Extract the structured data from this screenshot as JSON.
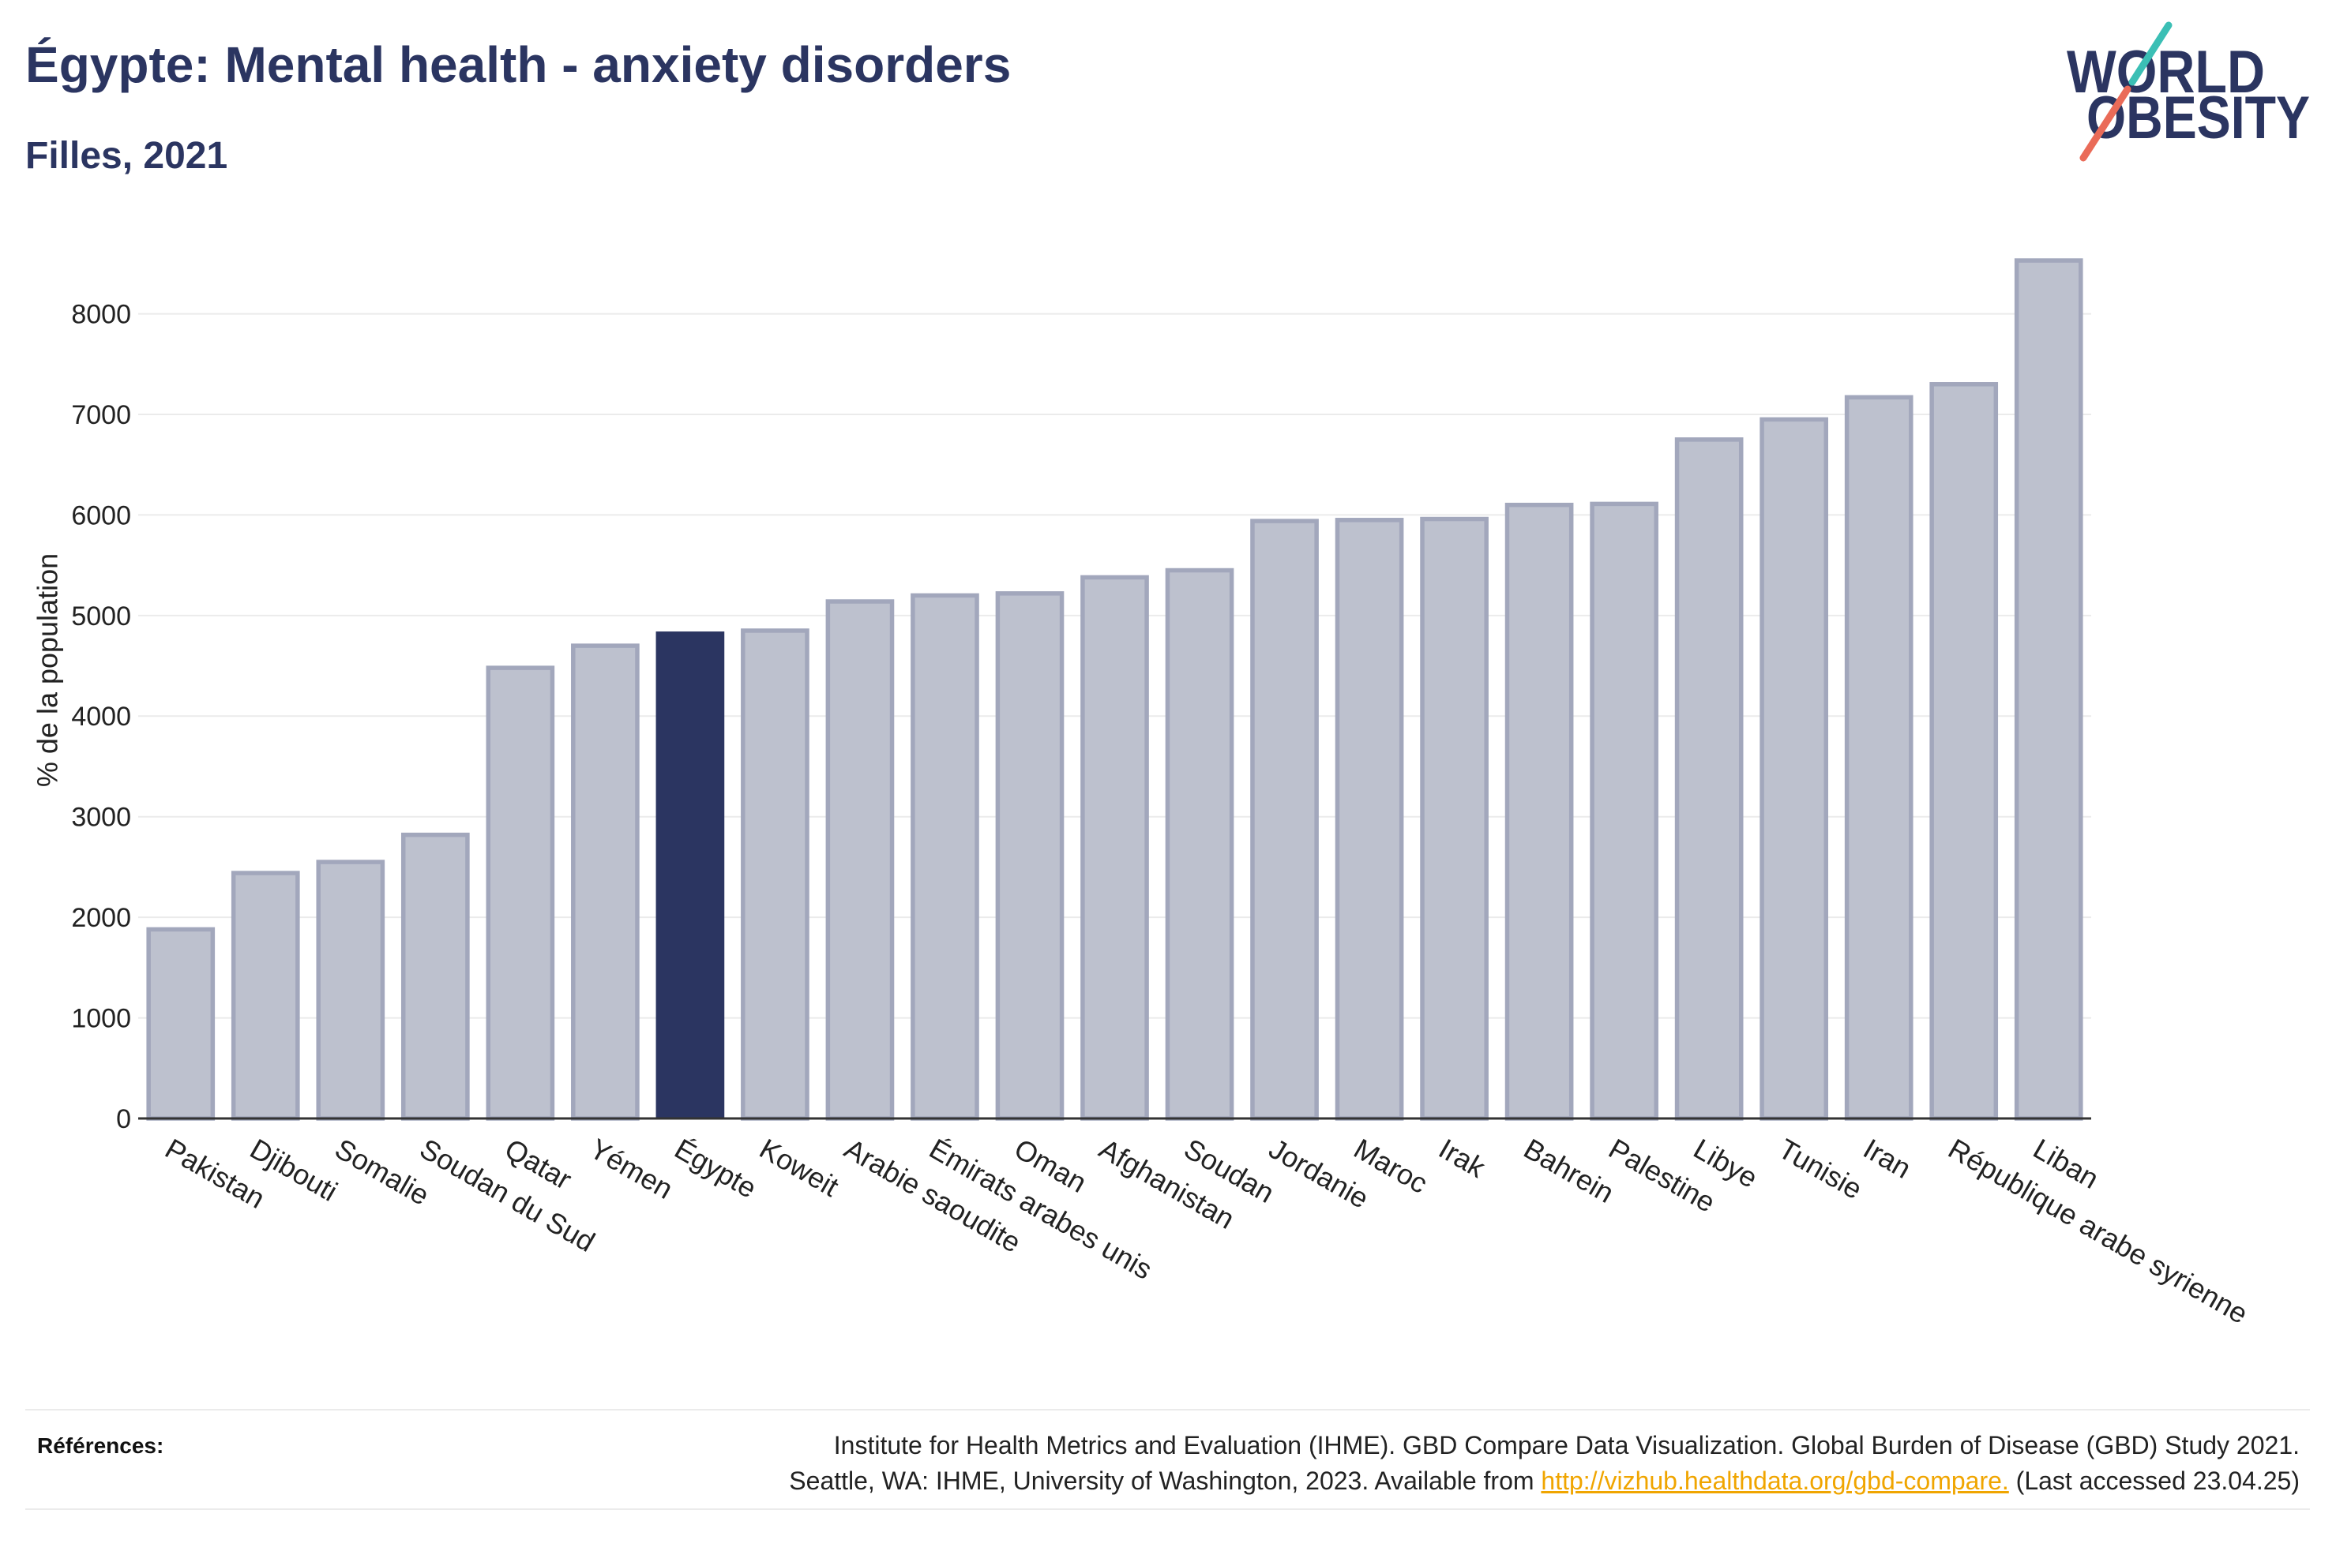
{
  "header": {
    "title": "Égypte: Mental health - anxiety disorders",
    "subtitle": "Filles, 2021"
  },
  "logo": {
    "line1": "WORLD",
    "line2": "OBESITY"
  },
  "colors": {
    "primary": "#2b3561",
    "bar_fill": "#bdc1ce",
    "bar_stroke": "#a2a7bc",
    "highlight": "#2b3561",
    "gridline": "#ebebeb",
    "link": "#f0a500",
    "logo_teal": "#3bbfb5",
    "logo_coral": "#ea6b58"
  },
  "chart_data": {
    "type": "bar",
    "categories": [
      "Pakistan",
      "Djibouti",
      "Somalie",
      "Soudan du Sud",
      "Qatar",
      "Yémen",
      "Égypte",
      "Koweit",
      "Arabie saoudite",
      "Émirats arabes unis",
      "Oman",
      "Afghanistan",
      "Soudan",
      "Jordanie",
      "Maroc",
      "Irak",
      "Bahrein",
      "Palestine",
      "Libye",
      "Tunisie",
      "Iran",
      "République arabe syrienne",
      "Liban"
    ],
    "values": [
      1880,
      2440,
      2550,
      2820,
      4480,
      4700,
      4820,
      4850,
      5140,
      5200,
      5220,
      5380,
      5450,
      5940,
      5950,
      5960,
      6100,
      6110,
      6750,
      6950,
      7170,
      7300,
      8530
    ],
    "highlight": "Égypte",
    "xlabel": "",
    "ylabel": "% de la population",
    "ylim": [
      0,
      8750
    ],
    "yticks": [
      0,
      1000,
      2000,
      3000,
      4000,
      5000,
      6000,
      7000,
      8000
    ],
    "grid": true
  },
  "footer": {
    "label": "Références:",
    "citation_line1": "Institute for Health Metrics and Evaluation (IHME). GBD Compare Data Visualization. Global Burden of Disease (GBD) Study 2021.",
    "citation_line2_prefix": "Seattle, WA: IHME, University of Washington, 2023. Available from ",
    "link": "http://vizhub.healthdata.org/gbd-compare.",
    "citation_line2_suffix": " (Last accessed 23.04.25)"
  }
}
